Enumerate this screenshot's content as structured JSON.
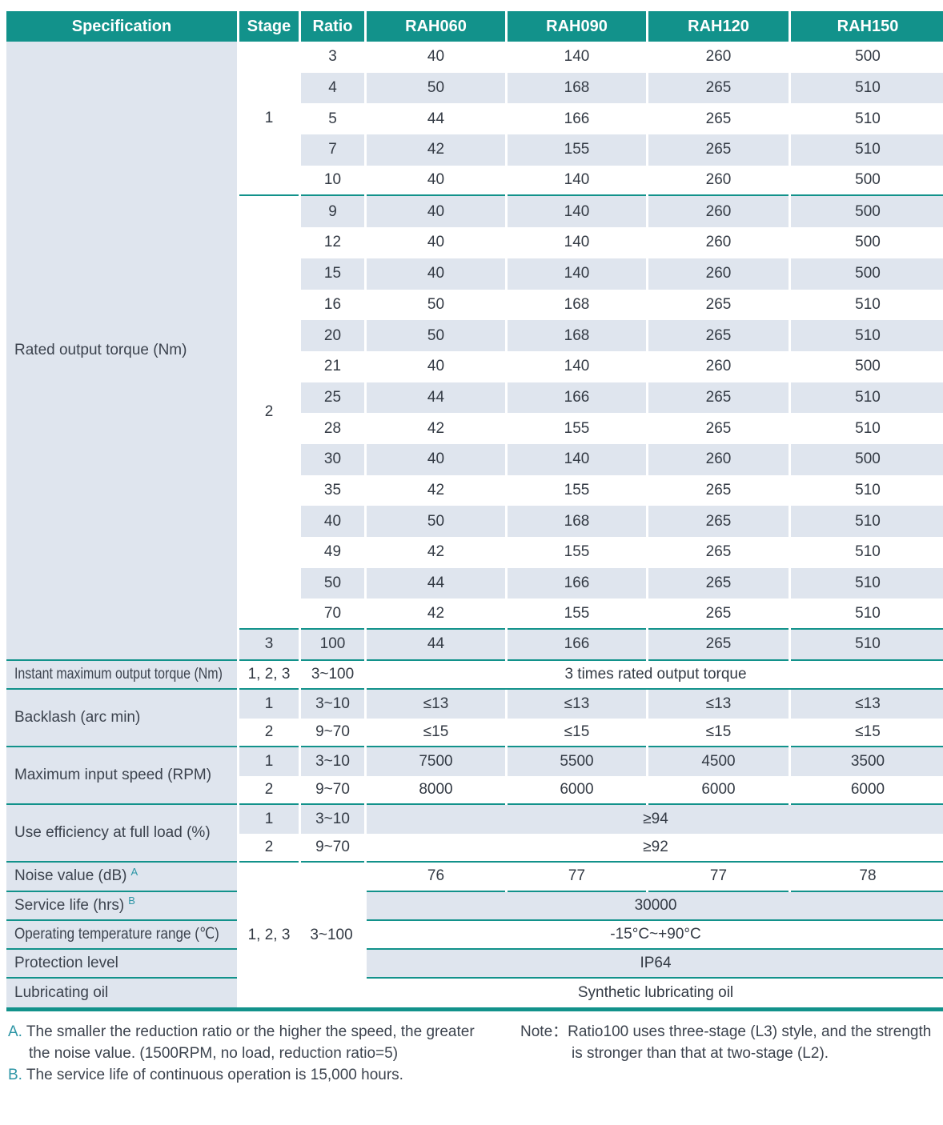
{
  "colors": {
    "teal": "#12928b",
    "shade": "#dfe5ee",
    "text": "#3c434e",
    "value_text": "#333a44",
    "accent": "#2e96a6"
  },
  "table": {
    "header": [
      "Specification",
      "Stage",
      "Ratio",
      "RAH060",
      "RAH090",
      "RAH120",
      "RAH150"
    ],
    "rated_output_torque": {
      "label": "Rated output torque (Nm)",
      "stages": [
        {
          "stage": "1",
          "rows": 5
        },
        {
          "stage": "2",
          "rows": 14
        },
        {
          "stage": "3",
          "rows": 1
        }
      ],
      "rows": [
        {
          "ratio": "3",
          "values": [
            "40",
            "140",
            "260",
            "500"
          ]
        },
        {
          "ratio": "4",
          "values": [
            "50",
            "168",
            "265",
            "510"
          ]
        },
        {
          "ratio": "5",
          "values": [
            "44",
            "166",
            "265",
            "510"
          ]
        },
        {
          "ratio": "7",
          "values": [
            "42",
            "155",
            "265",
            "510"
          ]
        },
        {
          "ratio": "10",
          "values": [
            "40",
            "140",
            "260",
            "500"
          ]
        },
        {
          "ratio": "9",
          "values": [
            "40",
            "140",
            "260",
            "500"
          ]
        },
        {
          "ratio": "12",
          "values": [
            "40",
            "140",
            "260",
            "500"
          ]
        },
        {
          "ratio": "15",
          "values": [
            "40",
            "140",
            "260",
            "500"
          ]
        },
        {
          "ratio": "16",
          "values": [
            "50",
            "168",
            "265",
            "510"
          ]
        },
        {
          "ratio": "20",
          "values": [
            "50",
            "168",
            "265",
            "510"
          ]
        },
        {
          "ratio": "21",
          "values": [
            "40",
            "140",
            "260",
            "500"
          ]
        },
        {
          "ratio": "25",
          "values": [
            "44",
            "166",
            "265",
            "510"
          ]
        },
        {
          "ratio": "28",
          "values": [
            "42",
            "155",
            "265",
            "510"
          ]
        },
        {
          "ratio": "30",
          "values": [
            "40",
            "140",
            "260",
            "500"
          ]
        },
        {
          "ratio": "35",
          "values": [
            "42",
            "155",
            "265",
            "510"
          ]
        },
        {
          "ratio": "40",
          "values": [
            "50",
            "168",
            "265",
            "510"
          ]
        },
        {
          "ratio": "49",
          "values": [
            "42",
            "155",
            "265",
            "510"
          ]
        },
        {
          "ratio": "50",
          "values": [
            "44",
            "166",
            "265",
            "510"
          ]
        },
        {
          "ratio": "70",
          "values": [
            "42",
            "155",
            "265",
            "510"
          ]
        },
        {
          "ratio": "100",
          "values": [
            "44",
            "166",
            "265",
            "510"
          ]
        }
      ]
    },
    "instant_max": {
      "label": "Instant maximum output torque (Nm)",
      "stage": "1, 2, 3",
      "ratio": "3~100",
      "value": "3 times rated output torque"
    },
    "backlash": {
      "label": "Backlash (arc min)",
      "rows": [
        {
          "stage": "1",
          "ratio": "3~10",
          "values": [
            "≤13",
            "≤13",
            "≤13",
            "≤13"
          ]
        },
        {
          "stage": "2",
          "ratio": "9~70",
          "values": [
            "≤15",
            "≤15",
            "≤15",
            "≤15"
          ]
        }
      ]
    },
    "max_input_speed": {
      "label": "Maximum input speed (RPM)",
      "rows": [
        {
          "stage": "1",
          "ratio": "3~10",
          "values": [
            "7500",
            "5500",
            "4500",
            "3500"
          ]
        },
        {
          "stage": "2",
          "ratio": "9~70",
          "values": [
            "8000",
            "6000",
            "6000",
            "6000"
          ]
        }
      ]
    },
    "efficiency": {
      "label": "Use efficiency at full load (%)",
      "rows": [
        {
          "stage": "1",
          "ratio": "3~10",
          "value": "≥94"
        },
        {
          "stage": "2",
          "ratio": "9~70",
          "value": "≥92"
        }
      ]
    },
    "bottom": {
      "stage": "1, 2, 3",
      "ratio": "3~100",
      "noise": {
        "label": "Noise value (dB)",
        "sup": "A",
        "values": [
          "76",
          "77",
          "77",
          "78"
        ]
      },
      "service_life": {
        "label": "Service life (hrs)",
        "sup": "B",
        "value": "30000"
      },
      "operating_temp": {
        "label": "Operating temperature range (℃)",
        "value": "-15°C~+90°C"
      },
      "protection": {
        "label": "Protection level",
        "value": "IP64"
      },
      "lubricating": {
        "label": "Lubricating oil",
        "value": "Synthetic lubricating oil"
      }
    }
  },
  "footnotes": {
    "a_prefix": "A.",
    "a_text": "The smaller the reduction ratio or the higher the speed, the greater the noise value. (1500RPM, no load, reduction ratio=5)",
    "b_prefix": "B.",
    "b_text": "The service life of continuous operation is 15,000 hours.",
    "note_prefix": "Note：",
    "note_text": "Ratio100 uses three-stage (L3) style, and the strength is stronger than that at two-stage (L2)."
  }
}
